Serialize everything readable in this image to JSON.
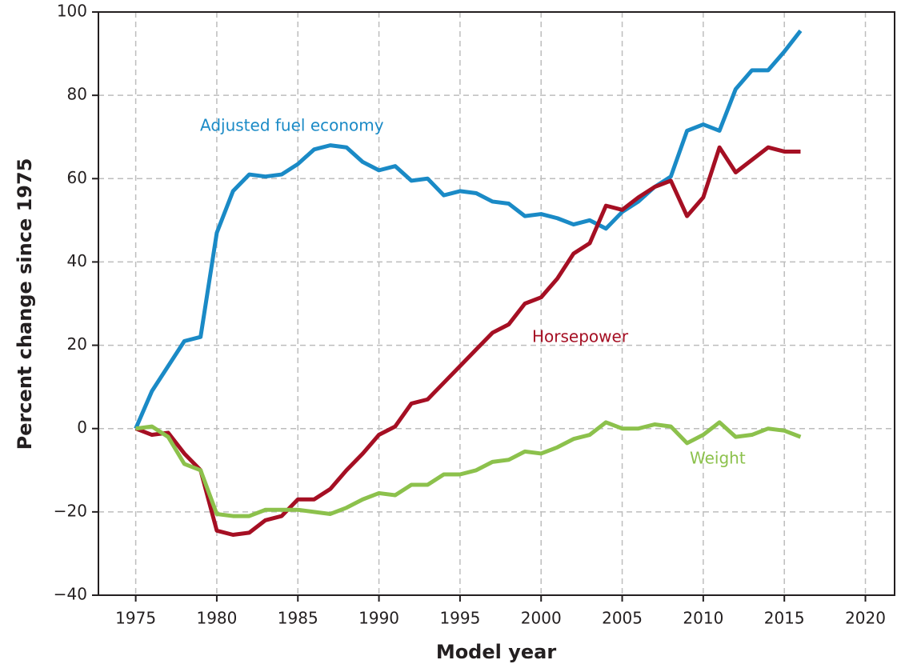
{
  "chart_data": {
    "type": "line",
    "x_label": "Model year",
    "y_label": "Percent change since 1975",
    "x": [
      1975,
      1976,
      1977,
      1978,
      1979,
      1980,
      1981,
      1982,
      1983,
      1984,
      1985,
      1986,
      1987,
      1988,
      1989,
      1990,
      1991,
      1992,
      1993,
      1994,
      1995,
      1996,
      1997,
      1998,
      1999,
      2000,
      2001,
      2002,
      2003,
      2004,
      2005,
      2006,
      2007,
      2008,
      2009,
      2010,
      2011,
      2012,
      2013,
      2014,
      2015,
      2016
    ],
    "series": [
      {
        "name": "Adjusted fuel economy",
        "color": "#1a8ac6",
        "values": [
          0,
          9,
          15,
          21,
          22,
          47,
          57,
          61,
          60.5,
          61,
          63.5,
          67,
          68,
          67.5,
          64,
          62,
          63,
          59.5,
          60,
          56,
          57,
          56.5,
          54.5,
          54,
          51,
          51.5,
          50.5,
          49,
          50,
          48,
          52,
          54.5,
          58,
          60.5,
          71.5,
          73,
          71.5,
          81.5,
          86,
          86,
          90.5,
          95.5
        ]
      },
      {
        "name": "Horsepower",
        "color": "#a50f23",
        "values": [
          0,
          -1.5,
          -1,
          -6,
          -10,
          -24.5,
          -25.5,
          -25,
          -22,
          -21,
          -17,
          -17,
          -14.5,
          -10,
          -6,
          -1.5,
          0.5,
          6,
          7,
          11,
          15,
          19,
          23,
          25,
          30,
          31.5,
          36,
          42,
          44.5,
          53.5,
          52.5,
          55.5,
          58,
          59.5,
          51,
          55.5,
          67.5,
          61.5,
          64.5,
          67.5,
          66.5,
          66.5
        ]
      },
      {
        "name": "Weight",
        "color": "#8cc14c",
        "values": [
          0,
          0.5,
          -2,
          -8.5,
          -10,
          -20.5,
          -21,
          -21,
          -19.5,
          -19.5,
          -19.5,
          -20,
          -20.5,
          -19,
          -17,
          -15.5,
          -16,
          -13.5,
          -13.5,
          -11,
          -11,
          -10,
          -8,
          -7.5,
          -5.5,
          -6,
          -4.5,
          -2.5,
          -1.5,
          1.5,
          0,
          0,
          1,
          0.5,
          -3.5,
          -1.5,
          1.5,
          -2,
          -1.5,
          0,
          -0.5,
          -2
        ]
      }
    ],
    "xlim": [
      1972.7,
      2021.8
    ],
    "ylim": [
      -40,
      100
    ],
    "xticks": [
      1975,
      1980,
      1985,
      1990,
      1995,
      2000,
      2005,
      2010,
      2015,
      2020
    ],
    "yticks": [
      {
        "value": -40,
        "label": "−40"
      },
      {
        "value": -20,
        "label": "−20"
      },
      0,
      20,
      40,
      60,
      80,
      100
    ],
    "grid": true
  }
}
